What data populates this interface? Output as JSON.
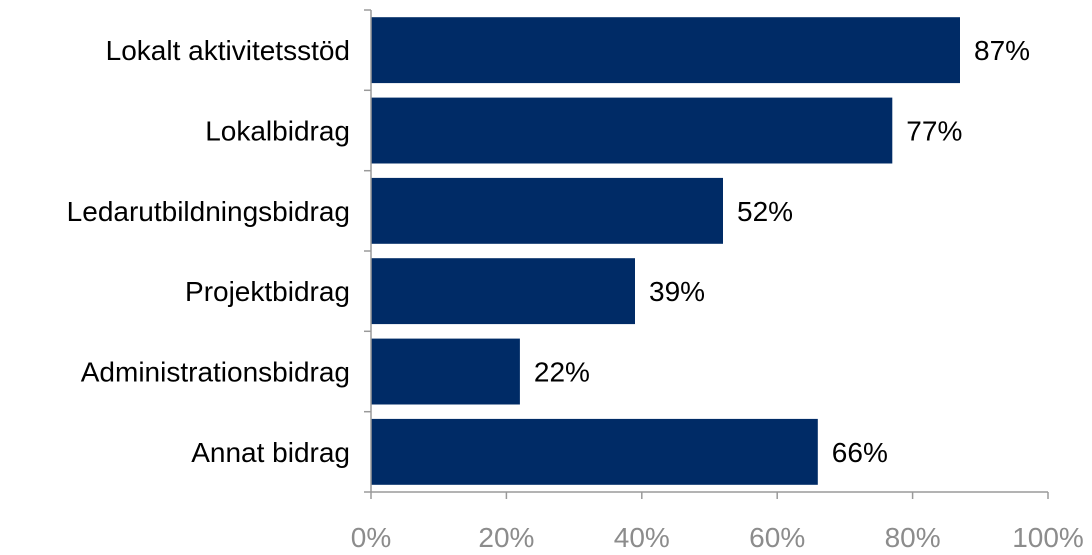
{
  "chart_data": {
    "type": "bar",
    "orientation": "horizontal",
    "categories": [
      "Lokalt aktivitetsstöd",
      "Lokalbidrag",
      "Ledarutbildningsbidrag",
      "Projektbidrag",
      "Administrationsbidrag",
      "Annat bidrag"
    ],
    "values": [
      87,
      77,
      52,
      39,
      22,
      66
    ],
    "value_labels": [
      "87%",
      "77%",
      "52%",
      "39%",
      "22%",
      "66%"
    ],
    "x_ticks": [
      "0%",
      "20%",
      "40%",
      "60%",
      "80%",
      "100%"
    ],
    "xlim": [
      0,
      100
    ],
    "grid": false,
    "bar_color": "#002b66",
    "tick_label_color": "#8c8c8c",
    "title": "",
    "xlabel": "",
    "ylabel": ""
  }
}
